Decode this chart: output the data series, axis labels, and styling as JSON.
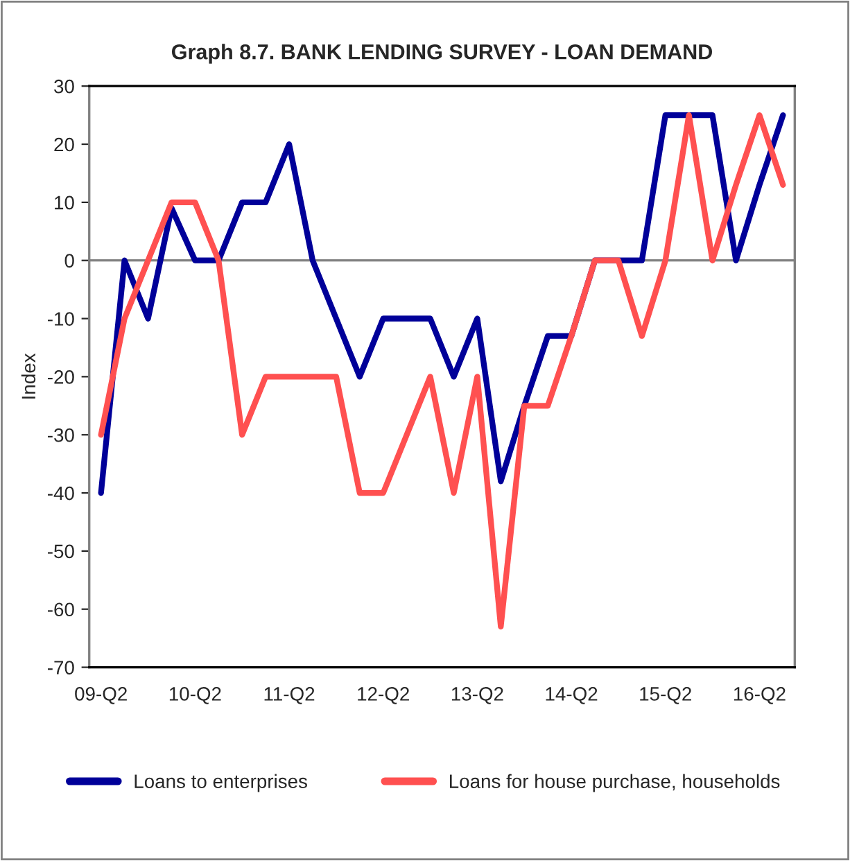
{
  "chart_data": {
    "type": "line",
    "title": "Graph 8.7. BANK LENDING SURVEY - LOAN DEMAND",
    "ylabel": "Index",
    "categories": [
      "09-Q2",
      null,
      null,
      null,
      "10-Q2",
      null,
      null,
      null,
      "11-Q2",
      null,
      null,
      null,
      "12-Q2",
      null,
      null,
      null,
      "13-Q2",
      null,
      null,
      null,
      "14-Q2",
      null,
      null,
      null,
      "15-Q2",
      null,
      null,
      null,
      "16-Q2",
      null
    ],
    "series": [
      {
        "name": "Loans to enterprises",
        "color": "#000099",
        "values": [
          -40,
          0,
          -10,
          9,
          0,
          0,
          10,
          10,
          20,
          0,
          -10,
          -20,
          -10,
          -10,
          -10,
          -20,
          -10,
          -38,
          -25,
          -13,
          -13,
          0,
          0,
          0,
          25,
          25,
          25,
          0,
          13,
          25
        ]
      },
      {
        "name": "Loans for house purchase, households",
        "color": "#ff5050",
        "values": [
          -30,
          -10,
          0,
          10,
          10,
          0,
          -30,
          -20,
          -20,
          -20,
          -20,
          -40,
          -40,
          -30,
          -20,
          -40,
          -20,
          -63,
          -25,
          -25,
          -13,
          0,
          0,
          -13,
          0,
          25,
          0,
          13,
          25,
          13
        ]
      }
    ],
    "ylim": [
      -70,
      30
    ],
    "yticks": [
      -70,
      -60,
      -50,
      -40,
      -30,
      -20,
      -10,
      0,
      10,
      20,
      30
    ],
    "ref_lines": [
      {
        "axis": "y",
        "value": 0,
        "color": "#808080"
      }
    ],
    "legend": "bottom",
    "grid": false,
    "marker": "none",
    "line_style": "solid"
  }
}
